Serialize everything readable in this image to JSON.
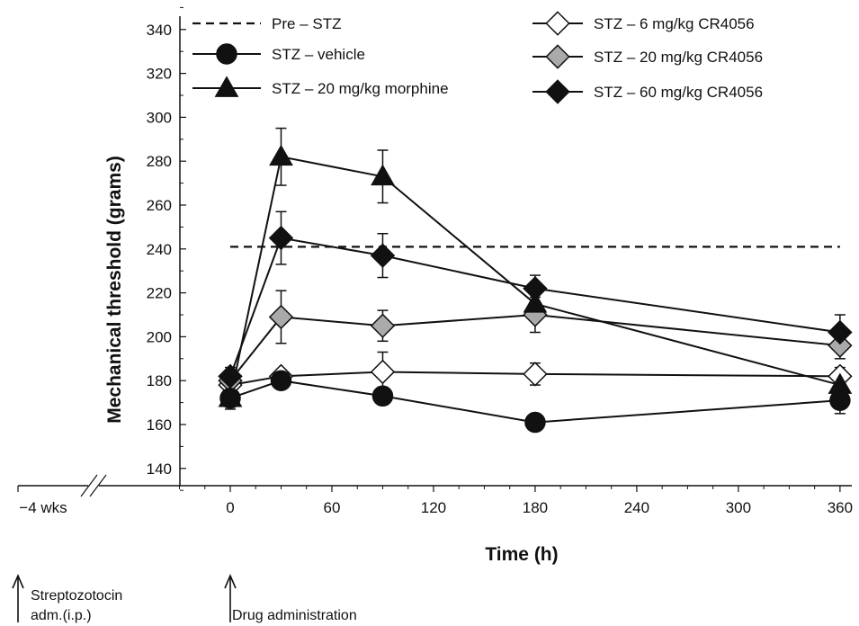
{
  "chart_data": {
    "type": "line",
    "title": "",
    "xlabel": "Time (h)",
    "ylabel": "Mechanical threshold (grams)",
    "ylim": [
      130,
      350
    ],
    "xlim": [
      -30,
      375
    ],
    "yticks": [
      140,
      160,
      180,
      200,
      220,
      240,
      260,
      280,
      300,
      320,
      340
    ],
    "xticks": [
      0,
      60,
      120,
      180,
      240,
      300,
      360
    ],
    "x_prebreak_label": "−4 wks",
    "grid": false,
    "legend_position": "top",
    "reference_line": {
      "name": "Pre – STZ",
      "y": 241,
      "style": "dashed"
    },
    "series": [
      {
        "name": "STZ – vehicle",
        "marker": "circle",
        "fill": "#111111",
        "x": [
          0,
          30,
          90,
          180,
          360
        ],
        "y": [
          172,
          180,
          173,
          161,
          171
        ],
        "err": [
          4,
          3,
          4,
          2,
          6
        ]
      },
      {
        "name": "STZ – 20 mg/kg morphine",
        "marker": "triangle",
        "fill": "#111111",
        "x": [
          0,
          30,
          90,
          180,
          360
        ],
        "y": [
          172,
          282,
          273,
          215,
          178
        ],
        "err": [
          5,
          13,
          12,
          5,
          4
        ]
      },
      {
        "name": "STZ – 6 mg/kg CR4056",
        "marker": "diamond",
        "fill": "#ffffff",
        "x": [
          0,
          30,
          90,
          180,
          360
        ],
        "y": [
          178,
          182,
          184,
          183,
          182
        ],
        "err": [
          3,
          3,
          9,
          5,
          4
        ]
      },
      {
        "name": "STZ – 20 mg/kg CR4056",
        "marker": "diamond",
        "fill": "#aaaaaa",
        "x": [
          0,
          30,
          90,
          180,
          360
        ],
        "y": [
          180,
          209,
          205,
          210,
          196
        ],
        "err": [
          4,
          12,
          7,
          8,
          6
        ]
      },
      {
        "name": "STZ – 60 mg/kg CR4056",
        "marker": "diamond",
        "fill": "#111111",
        "x": [
          0,
          30,
          90,
          180,
          360
        ],
        "y": [
          182,
          245,
          237,
          222,
          202
        ],
        "err": [
          4,
          12,
          10,
          6,
          8
        ]
      }
    ],
    "annotations": [
      {
        "at": "−4 wks",
        "text_lines": [
          "Streptozotocin",
          "adm.(i.p.)"
        ]
      },
      {
        "at": "0",
        "text_lines": [
          "Drug administration"
        ]
      }
    ]
  }
}
